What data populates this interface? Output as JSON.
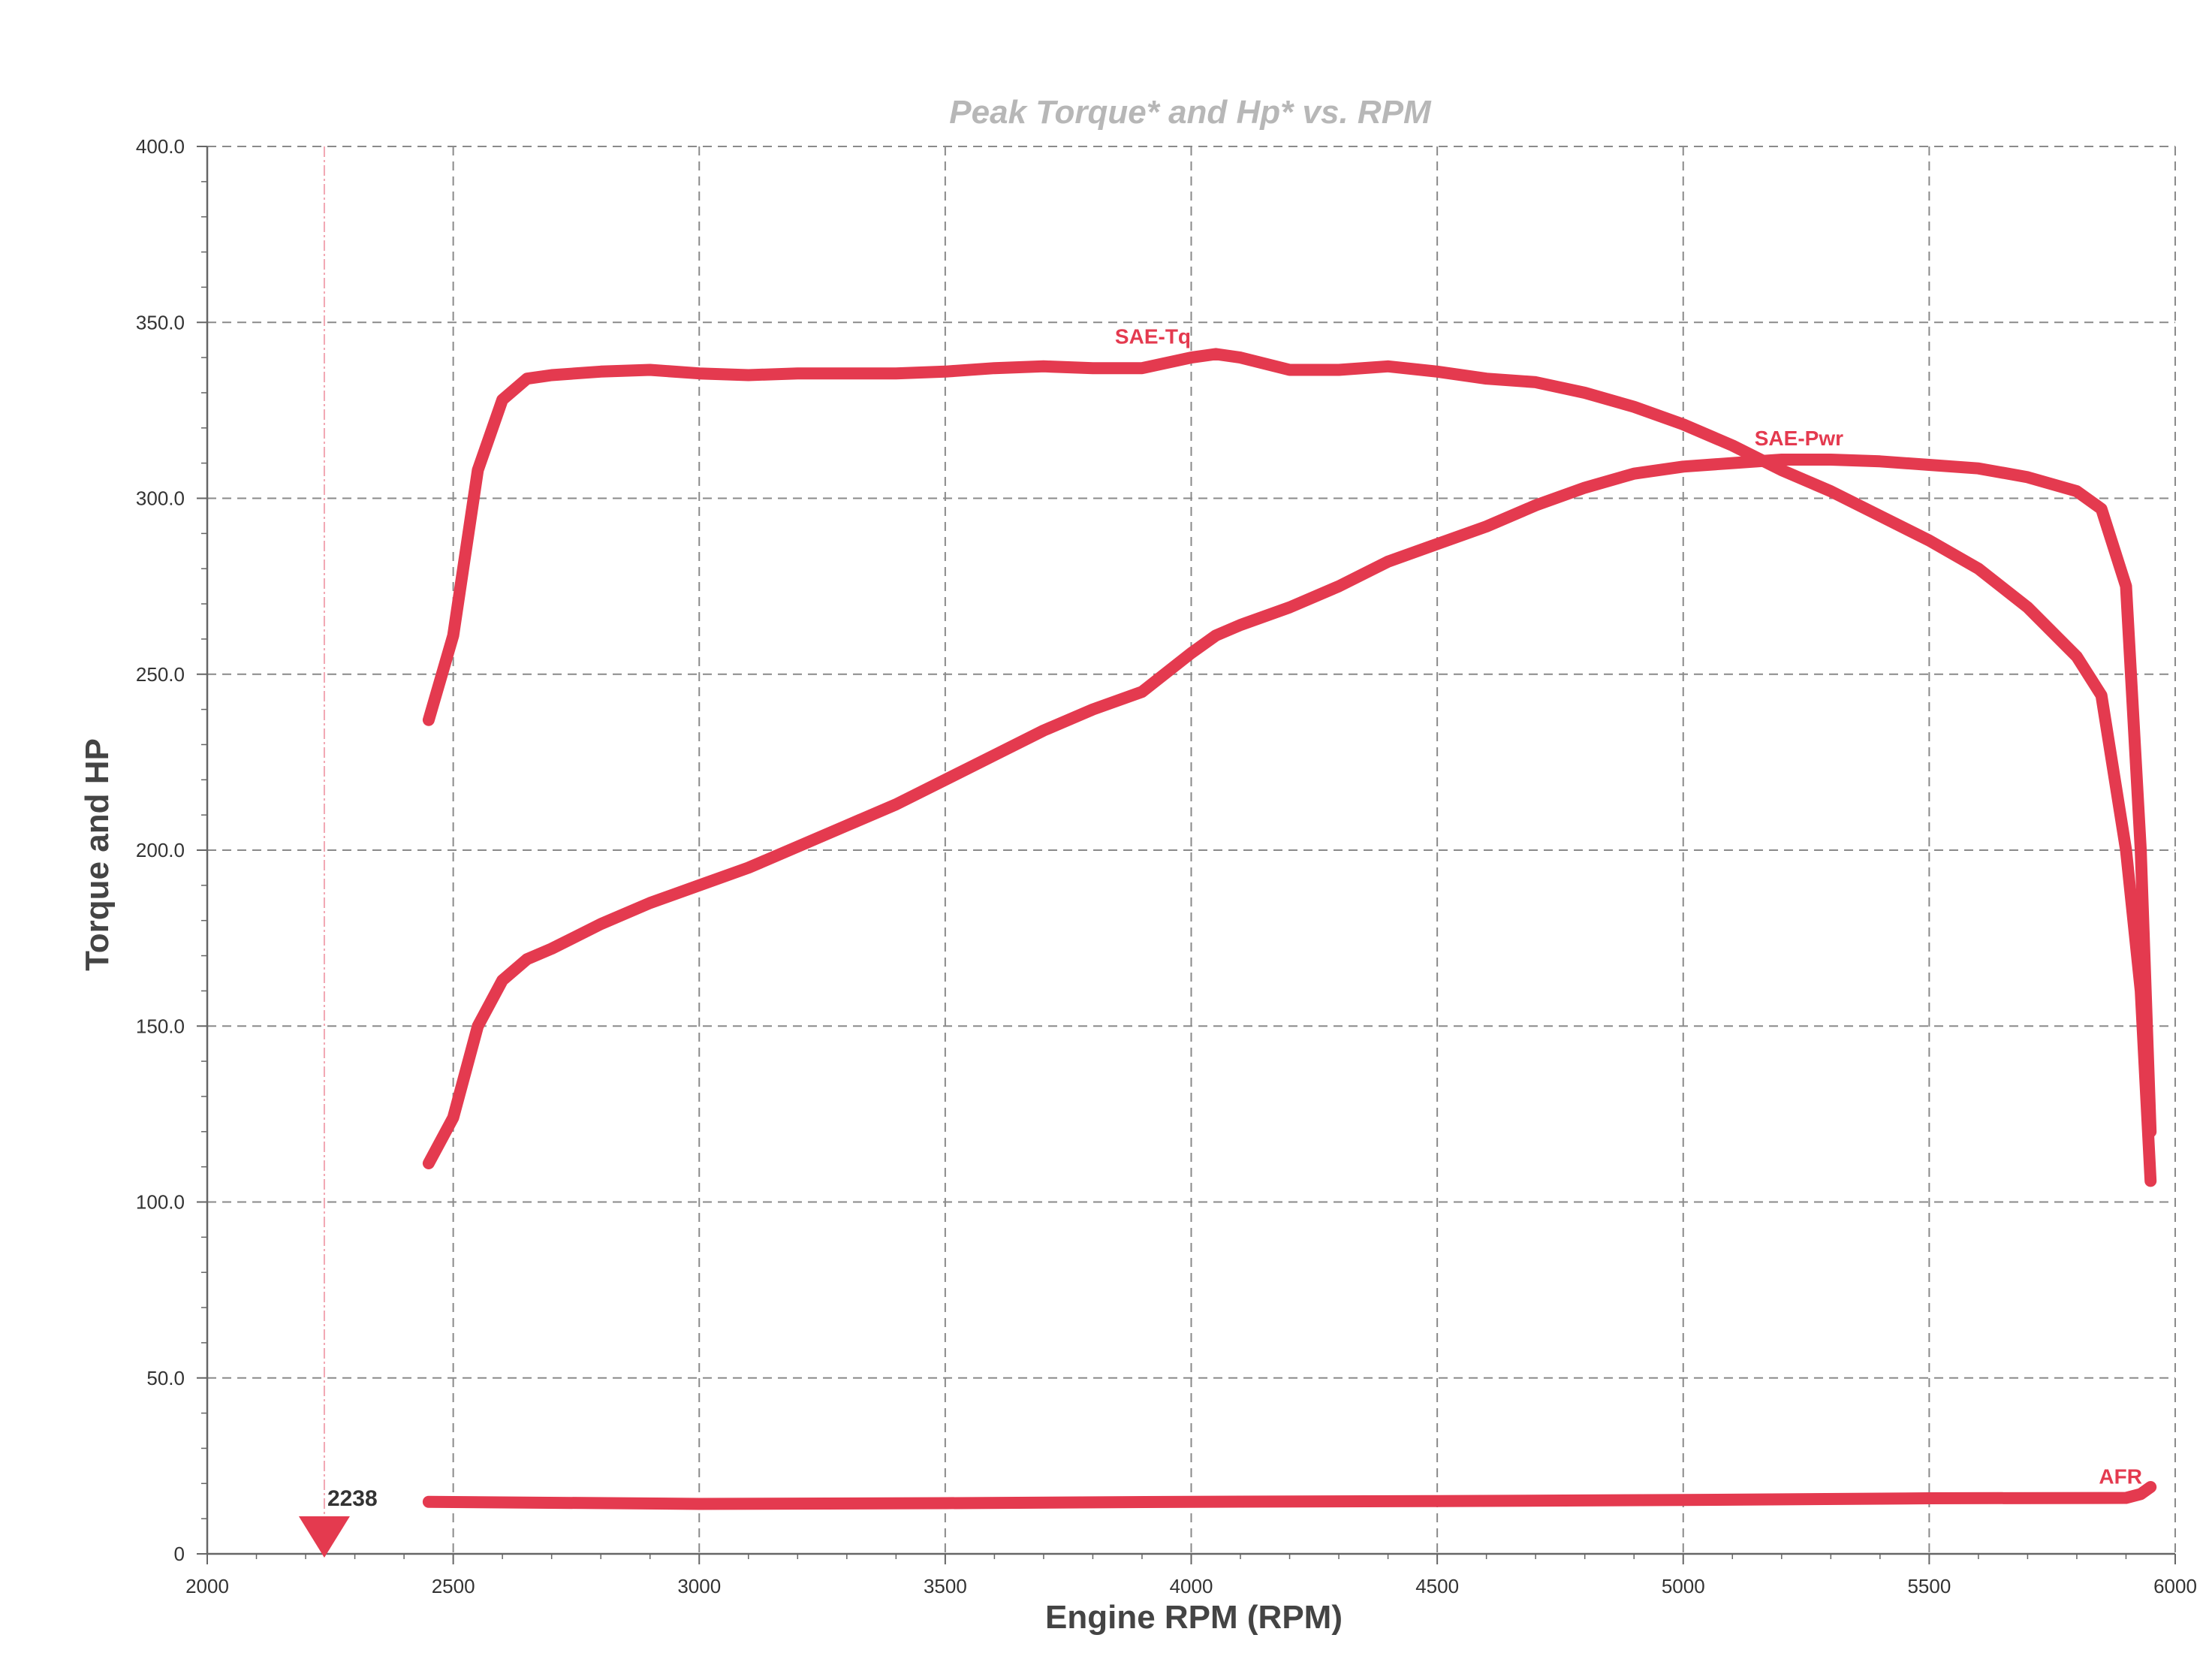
{
  "colors": {
    "series": "#e43a4f",
    "grid": "#8a8a8a",
    "axis": "#666666",
    "title": "#b7b7b7"
  },
  "chart_data": {
    "type": "line",
    "title": "Peak Torque* and Hp* vs. RPM",
    "xlabel": "Engine RPM (RPM)",
    "ylabel": "Torque and HP",
    "xlim": [
      2000,
      6000
    ],
    "ylim": [
      0,
      400
    ],
    "x_ticks": [
      "2000",
      "2500",
      "3000",
      "3500",
      "4000",
      "4500",
      "5000",
      "5500",
      "6000"
    ],
    "y_ticks": [
      "0",
      "50.0",
      "100.0",
      "150.0",
      "200.0",
      "250.0",
      "300.0",
      "350.0",
      "400.0"
    ],
    "grid": true,
    "marker": {
      "rpm": 2238,
      "label": "2238"
    },
    "series": [
      {
        "name": "SAE-Tq",
        "x": [
          2450,
          2500,
          2550,
          2600,
          2650,
          2700,
          2800,
          2900,
          3000,
          3100,
          3200,
          3300,
          3400,
          3500,
          3600,
          3700,
          3800,
          3900,
          4000,
          4050,
          4100,
          4200,
          4300,
          4400,
          4500,
          4600,
          4700,
          4800,
          4900,
          5000,
          5100,
          5200,
          5300,
          5400,
          5500,
          5600,
          5700,
          5800,
          5850,
          5900,
          5930,
          5950
        ],
        "y": [
          237,
          261,
          308,
          328,
          334,
          335,
          336,
          336.5,
          335.5,
          335,
          335.5,
          335.5,
          335.5,
          336,
          337,
          337.5,
          337,
          337,
          340,
          341,
          340,
          336.5,
          336.5,
          337.5,
          336,
          334,
          333,
          330,
          326,
          321,
          315,
          308,
          302,
          295,
          288,
          280,
          269,
          255,
          244,
          200,
          160,
          106
        ]
      },
      {
        "name": "SAE-Pwr",
        "x": [
          2450,
          2500,
          2550,
          2600,
          2650,
          2700,
          2800,
          2900,
          3000,
          3100,
          3200,
          3300,
          3400,
          3500,
          3600,
          3700,
          3800,
          3900,
          4000,
          4050,
          4100,
          4200,
          4300,
          4400,
          4500,
          4600,
          4700,
          4800,
          4900,
          5000,
          5100,
          5200,
          5300,
          5400,
          5500,
          5600,
          5700,
          5800,
          5850,
          5900,
          5930,
          5950
        ],
        "y": [
          111,
          124,
          150,
          163,
          169,
          172,
          179,
          185,
          190,
          195,
          201,
          207,
          213,
          220,
          227,
          234,
          240,
          245,
          256,
          261,
          264,
          269,
          275,
          282,
          287,
          292,
          298,
          303,
          307,
          309,
          310,
          311,
          311,
          310.5,
          309.5,
          308.5,
          306,
          302,
          297,
          275,
          200,
          120
        ]
      },
      {
        "name": "AFR",
        "x": [
          2450,
          3000,
          3500,
          4000,
          4500,
          5000,
          5500,
          5900,
          5930,
          5950
        ],
        "y": [
          14.8,
          14.2,
          14.4,
          14.8,
          15.0,
          15.3,
          15.8,
          15.9,
          17,
          19
        ]
      }
    ]
  }
}
